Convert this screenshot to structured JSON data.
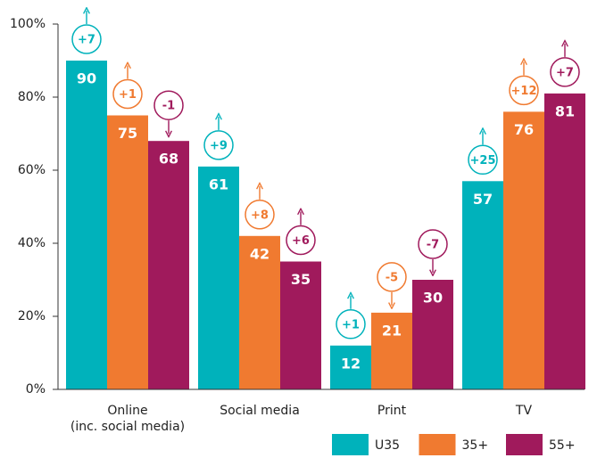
{
  "chart_data": {
    "type": "bar",
    "categories": [
      [
        "Online",
        "(inc. social media)"
      ],
      [
        "Social media"
      ],
      [
        "Print"
      ],
      [
        "TV"
      ]
    ],
    "series": [
      {
        "name": "U35",
        "color": "#00b2bb",
        "values": [
          90,
          61,
          12,
          57
        ],
        "changes": [
          7,
          9,
          1,
          25
        ],
        "change_labels": [
          "+7",
          "+9",
          "+1",
          "+25"
        ]
      },
      {
        "name": "35+",
        "color": "#f07a30",
        "values": [
          75,
          42,
          21,
          76
        ],
        "changes": [
          1,
          8,
          -5,
          12
        ],
        "change_labels": [
          "+1",
          "+8",
          "-5",
          "+12"
        ]
      },
      {
        "name": "55+",
        "color": "#a01a5c",
        "values": [
          68,
          35,
          30,
          81
        ],
        "changes": [
          -1,
          6,
          -7,
          7
        ],
        "change_labels": [
          "-1",
          "+6",
          "-7",
          "+7"
        ]
      }
    ],
    "ylim": [
      0,
      100
    ],
    "yticks": [
      {
        "value": 0,
        "label": "0%"
      },
      {
        "value": 20,
        "label": "20%"
      },
      {
        "value": 40,
        "label": "40%"
      },
      {
        "value": 60,
        "label": "60%"
      },
      {
        "value": 80,
        "label": "80%"
      },
      {
        "value": 100,
        "label": "100%"
      }
    ],
    "legend": "bottom-right"
  }
}
